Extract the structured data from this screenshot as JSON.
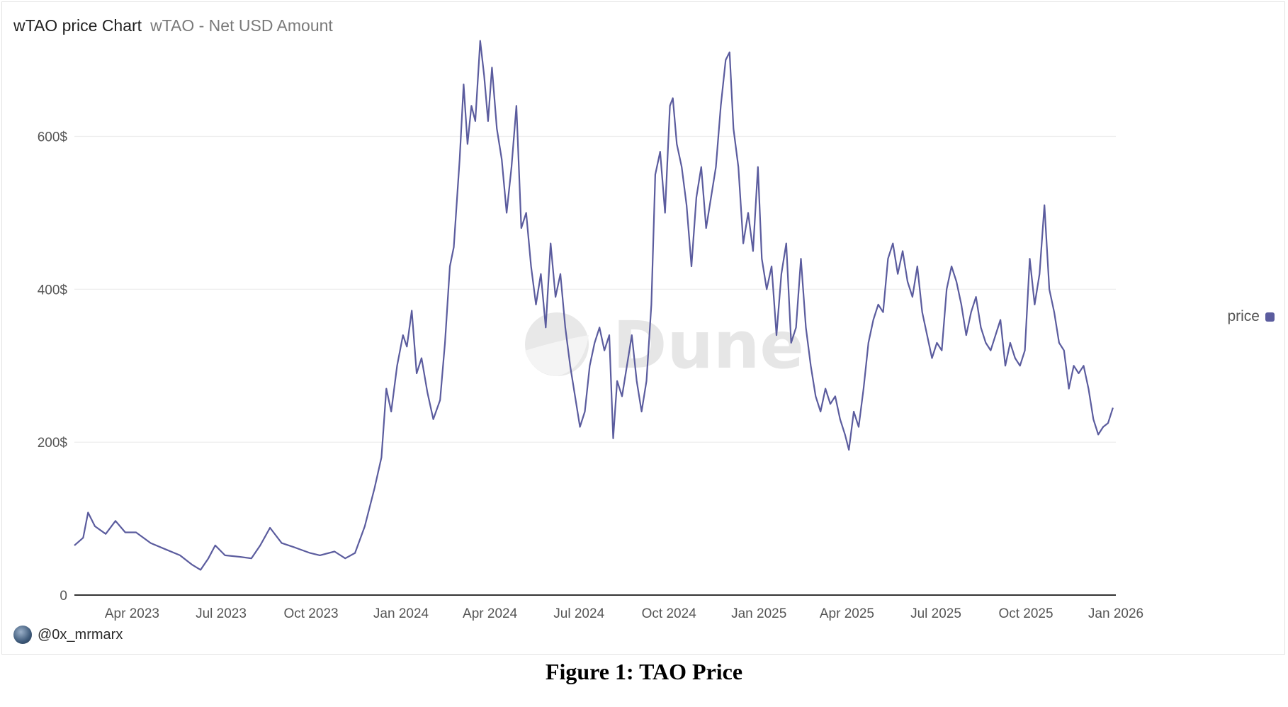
{
  "header": {
    "title": "wTAO price Chart",
    "subtitle": "wTAO - Net USD Amount"
  },
  "watermark": "Dune",
  "author": {
    "handle": "@0x_mrmarx"
  },
  "caption": "Figure 1: TAO Price",
  "colors": {
    "series": "#5b5c9e",
    "grid": "#ececec",
    "axis": "#333333"
  },
  "chart_data": {
    "type": "line",
    "title": "wTAO price Chart",
    "subtitle": "wTAO - Net USD Amount",
    "xlabel": "",
    "ylabel": "",
    "x_range": [
      "2023-02-01",
      "2026-01-01"
    ],
    "ylim": [
      0,
      720
    ],
    "y_ticks": [
      0,
      200,
      400,
      600
    ],
    "y_tick_labels": [
      "0",
      "200$",
      "400$",
      "600$"
    ],
    "x_ticks": [
      "2023-04-01",
      "2023-07-01",
      "2023-10-01",
      "2024-01-01",
      "2024-04-01",
      "2024-07-01",
      "2024-10-01",
      "2025-01-01",
      "2025-04-01",
      "2025-07-01",
      "2025-10-01",
      "2026-01-01"
    ],
    "x_tick_labels": [
      "Apr 2023",
      "Jul 2023",
      "Oct 2023",
      "Jan 2024",
      "Apr 2024",
      "Jul 2024",
      "Oct 2024",
      "Jan 2025",
      "Apr 2025",
      "Jul 2025",
      "Oct 2025",
      "Jan 2026"
    ],
    "grid": true,
    "legend_position": "right",
    "series": [
      {
        "name": "price",
        "points": [
          [
            "2023-02-01",
            65
          ],
          [
            "2023-02-10",
            75
          ],
          [
            "2023-02-15",
            108
          ],
          [
            "2023-02-22",
            90
          ],
          [
            "2023-03-05",
            80
          ],
          [
            "2023-03-15",
            97
          ],
          [
            "2023-03-25",
            82
          ],
          [
            "2023-04-05",
            82
          ],
          [
            "2023-04-20",
            68
          ],
          [
            "2023-05-05",
            60
          ],
          [
            "2023-05-20",
            52
          ],
          [
            "2023-06-01",
            40
          ],
          [
            "2023-06-10",
            33
          ],
          [
            "2023-06-18",
            48
          ],
          [
            "2023-06-25",
            65
          ],
          [
            "2023-07-05",
            52
          ],
          [
            "2023-07-20",
            50
          ],
          [
            "2023-08-01",
            48
          ],
          [
            "2023-08-10",
            65
          ],
          [
            "2023-08-20",
            88
          ],
          [
            "2023-09-01",
            68
          ],
          [
            "2023-09-15",
            62
          ],
          [
            "2023-09-30",
            55
          ],
          [
            "2023-10-10",
            52
          ],
          [
            "2023-10-25",
            57
          ],
          [
            "2023-11-05",
            48
          ],
          [
            "2023-11-15",
            55
          ],
          [
            "2023-11-25",
            90
          ],
          [
            "2023-12-05",
            140
          ],
          [
            "2023-12-12",
            180
          ],
          [
            "2023-12-17",
            270
          ],
          [
            "2023-12-22",
            240
          ],
          [
            "2023-12-28",
            300
          ],
          [
            "2024-01-03",
            340
          ],
          [
            "2024-01-07",
            325
          ],
          [
            "2024-01-12",
            372
          ],
          [
            "2024-01-17",
            290
          ],
          [
            "2024-01-22",
            310
          ],
          [
            "2024-01-28",
            265
          ],
          [
            "2024-02-03",
            230
          ],
          [
            "2024-02-10",
            255
          ],
          [
            "2024-02-15",
            330
          ],
          [
            "2024-02-20",
            430
          ],
          [
            "2024-02-24",
            455
          ],
          [
            "2024-03-01",
            570
          ],
          [
            "2024-03-05",
            668
          ],
          [
            "2024-03-09",
            590
          ],
          [
            "2024-03-13",
            640
          ],
          [
            "2024-03-17",
            620
          ],
          [
            "2024-03-22",
            725
          ],
          [
            "2024-03-26",
            680
          ],
          [
            "2024-03-30",
            620
          ],
          [
            "2024-04-03",
            690
          ],
          [
            "2024-04-08",
            610
          ],
          [
            "2024-04-13",
            570
          ],
          [
            "2024-04-18",
            500
          ],
          [
            "2024-04-23",
            560
          ],
          [
            "2024-04-28",
            640
          ],
          [
            "2024-05-03",
            480
          ],
          [
            "2024-05-08",
            500
          ],
          [
            "2024-05-13",
            430
          ],
          [
            "2024-05-18",
            380
          ],
          [
            "2024-05-23",
            420
          ],
          [
            "2024-05-28",
            350
          ],
          [
            "2024-06-02",
            460
          ],
          [
            "2024-06-07",
            390
          ],
          [
            "2024-06-12",
            420
          ],
          [
            "2024-06-17",
            350
          ],
          [
            "2024-06-22",
            300
          ],
          [
            "2024-06-27",
            260
          ],
          [
            "2024-07-02",
            220
          ],
          [
            "2024-07-07",
            240
          ],
          [
            "2024-07-12",
            300
          ],
          [
            "2024-07-17",
            330
          ],
          [
            "2024-07-22",
            350
          ],
          [
            "2024-07-27",
            320
          ],
          [
            "2024-08-01",
            340
          ],
          [
            "2024-08-05",
            205
          ],
          [
            "2024-08-09",
            280
          ],
          [
            "2024-08-14",
            260
          ],
          [
            "2024-08-19",
            300
          ],
          [
            "2024-08-24",
            340
          ],
          [
            "2024-08-29",
            280
          ],
          [
            "2024-09-03",
            240
          ],
          [
            "2024-09-08",
            280
          ],
          [
            "2024-09-13",
            380
          ],
          [
            "2024-09-17",
            550
          ],
          [
            "2024-09-22",
            580
          ],
          [
            "2024-09-27",
            500
          ],
          [
            "2024-10-02",
            640
          ],
          [
            "2024-10-05",
            650
          ],
          [
            "2024-10-09",
            590
          ],
          [
            "2024-10-14",
            560
          ],
          [
            "2024-10-19",
            510
          ],
          [
            "2024-10-24",
            430
          ],
          [
            "2024-10-29",
            520
          ],
          [
            "2024-11-03",
            560
          ],
          [
            "2024-11-08",
            480
          ],
          [
            "2024-11-13",
            520
          ],
          [
            "2024-11-18",
            560
          ],
          [
            "2024-11-23",
            640
          ],
          [
            "2024-11-28",
            700
          ],
          [
            "2024-12-02",
            710
          ],
          [
            "2024-12-06",
            610
          ],
          [
            "2024-12-11",
            560
          ],
          [
            "2024-12-16",
            460
          ],
          [
            "2024-12-21",
            500
          ],
          [
            "2024-12-26",
            450
          ],
          [
            "2024-12-31",
            560
          ],
          [
            "2025-01-04",
            440
          ],
          [
            "2025-01-09",
            400
          ],
          [
            "2025-01-14",
            430
          ],
          [
            "2025-01-19",
            340
          ],
          [
            "2025-01-24",
            420
          ],
          [
            "2025-01-29",
            460
          ],
          [
            "2025-02-03",
            330
          ],
          [
            "2025-02-08",
            350
          ],
          [
            "2025-02-13",
            440
          ],
          [
            "2025-02-18",
            350
          ],
          [
            "2025-02-23",
            300
          ],
          [
            "2025-02-28",
            260
          ],
          [
            "2025-03-05",
            240
          ],
          [
            "2025-03-10",
            270
          ],
          [
            "2025-03-15",
            250
          ],
          [
            "2025-03-20",
            260
          ],
          [
            "2025-03-25",
            230
          ],
          [
            "2025-03-30",
            210
          ],
          [
            "2025-04-03",
            190
          ],
          [
            "2025-04-08",
            240
          ],
          [
            "2025-04-13",
            220
          ],
          [
            "2025-04-18",
            270
          ],
          [
            "2025-04-23",
            330
          ],
          [
            "2025-04-28",
            360
          ],
          [
            "2025-05-03",
            380
          ],
          [
            "2025-05-08",
            370
          ],
          [
            "2025-05-13",
            440
          ],
          [
            "2025-05-18",
            460
          ],
          [
            "2025-05-23",
            420
          ],
          [
            "2025-05-28",
            450
          ],
          [
            "2025-06-02",
            410
          ],
          [
            "2025-06-07",
            390
          ],
          [
            "2025-06-12",
            430
          ],
          [
            "2025-06-17",
            370
          ],
          [
            "2025-06-22",
            340
          ],
          [
            "2025-06-27",
            310
          ],
          [
            "2025-07-02",
            330
          ],
          [
            "2025-07-07",
            320
          ],
          [
            "2025-07-12",
            400
          ],
          [
            "2025-07-17",
            430
          ],
          [
            "2025-07-22",
            410
          ],
          [
            "2025-07-27",
            380
          ],
          [
            "2025-08-01",
            340
          ],
          [
            "2025-08-06",
            370
          ],
          [
            "2025-08-11",
            390
          ],
          [
            "2025-08-16",
            350
          ],
          [
            "2025-08-21",
            330
          ],
          [
            "2025-08-26",
            320
          ],
          [
            "2025-08-31",
            340
          ],
          [
            "2025-09-05",
            360
          ],
          [
            "2025-09-10",
            300
          ],
          [
            "2025-09-15",
            330
          ],
          [
            "2025-09-20",
            310
          ],
          [
            "2025-09-25",
            300
          ],
          [
            "2025-09-30",
            320
          ],
          [
            "2025-10-05",
            440
          ],
          [
            "2025-10-10",
            380
          ],
          [
            "2025-10-15",
            420
          ],
          [
            "2025-10-20",
            510
          ],
          [
            "2025-10-25",
            400
          ],
          [
            "2025-10-30",
            370
          ],
          [
            "2025-11-04",
            330
          ],
          [
            "2025-11-09",
            320
          ],
          [
            "2025-11-14",
            270
          ],
          [
            "2025-11-19",
            300
          ],
          [
            "2025-11-24",
            290
          ],
          [
            "2025-11-29",
            300
          ],
          [
            "2025-12-04",
            270
          ],
          [
            "2025-12-09",
            230
          ],
          [
            "2025-12-14",
            210
          ],
          [
            "2025-12-19",
            220
          ],
          [
            "2025-12-24",
            225
          ],
          [
            "2025-12-29",
            245
          ]
        ]
      }
    ]
  }
}
